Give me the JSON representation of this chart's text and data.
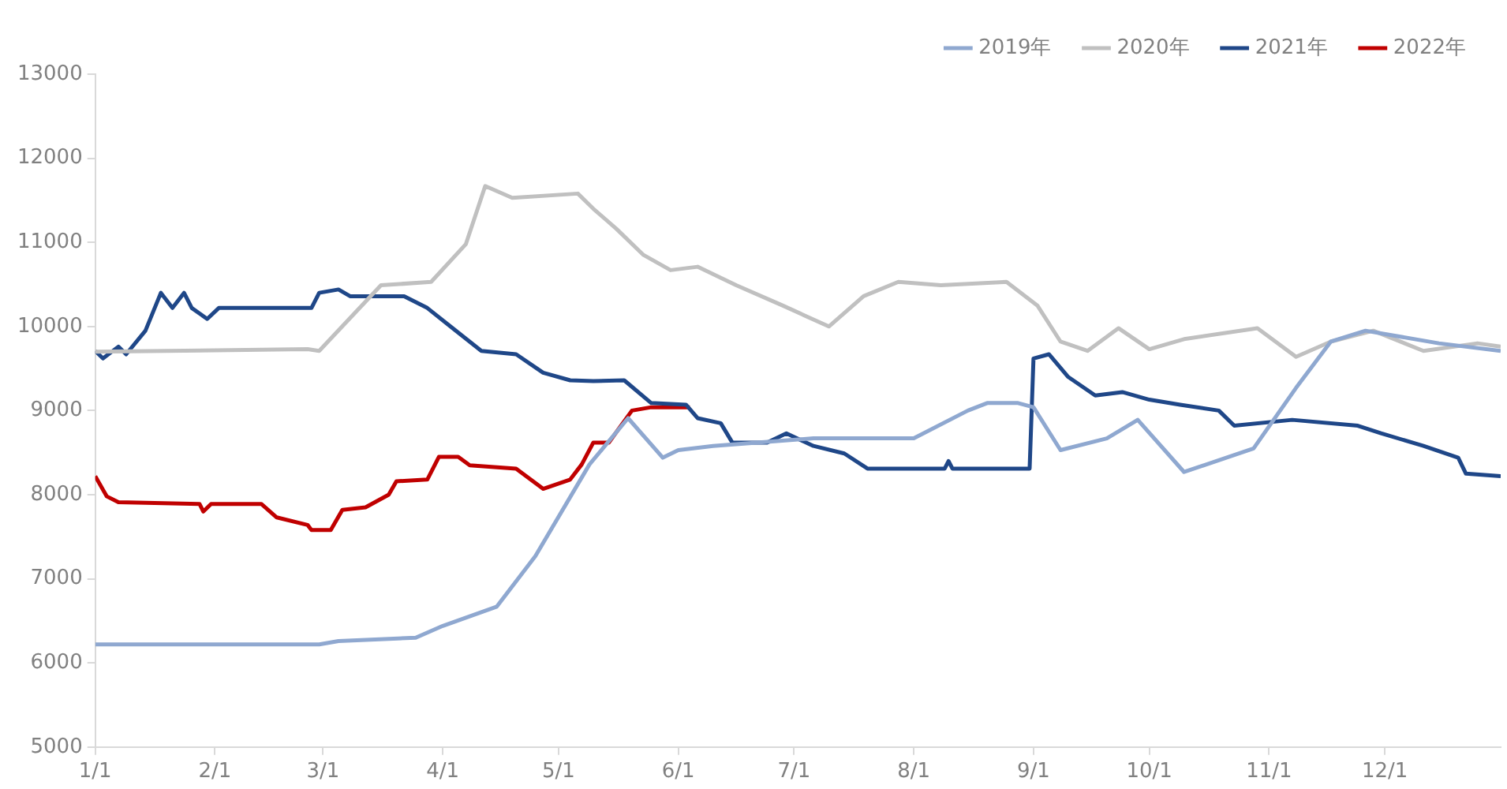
{
  "chart_data": {
    "type": "line",
    "legend": "top right",
    "grid": false,
    "marker": "none",
    "line_style": "solid",
    "ylim": [
      5000,
      13000
    ],
    "yticks": [
      5000,
      6000,
      7000,
      8000,
      9000,
      10000,
      11000,
      12000,
      13000
    ],
    "xlim": [
      "--01-01",
      "--12-31"
    ],
    "xticks": [
      {
        "value": "--01-01",
        "label": "1/1"
      },
      {
        "value": "--02-01",
        "label": "2/1"
      },
      {
        "value": "--03-01",
        "label": "3/1"
      },
      {
        "value": "--04-01",
        "label": "4/1"
      },
      {
        "value": "--05-01",
        "label": "5/1"
      },
      {
        "value": "--06-01",
        "label": "6/1"
      },
      {
        "value": "--07-01",
        "label": "7/1"
      },
      {
        "value": "--08-01",
        "label": "8/1"
      },
      {
        "value": "--09-01",
        "label": "9/1"
      },
      {
        "value": "--10-01",
        "label": "10/1"
      },
      {
        "value": "--11-01",
        "label": "11/1"
      },
      {
        "value": "--12-01",
        "label": "12/1"
      }
    ],
    "series": [
      {
        "name": "2019年",
        "color": "#8fa8d0",
        "x": [
          "--01-01",
          "--02-28",
          "--03-05",
          "--03-25",
          "--04-01",
          "--04-15",
          "--04-25",
          "--05-09",
          "--05-19",
          "--05-28",
          "--06-01",
          "--06-10",
          "--07-06",
          "--08-01",
          "--08-15",
          "--08-20",
          "--08-28",
          "--09-01",
          "--09-08",
          "--09-20",
          "--09-28",
          "--10-10",
          "--10-28",
          "--11-08",
          "--11-17",
          "--11-26",
          "--12-15",
          "--12-31"
        ],
        "values": [
          6220,
          6220,
          6260,
          6300,
          6440,
          6670,
          7270,
          8360,
          8910,
          8440,
          8530,
          8580,
          8670,
          8670,
          9000,
          9090,
          9090,
          9040,
          8530,
          8670,
          8890,
          8270,
          8550,
          9270,
          9820,
          9950,
          9800,
          9710
        ]
      },
      {
        "name": "2020年",
        "color": "#c0c0c0",
        "x": [
          "--01-01",
          "--02-25",
          "--02-28",
          "--03-16",
          "--03-29",
          "--04-07",
          "--04-12",
          "--04-19",
          "--05-06",
          "--05-10",
          "--05-16",
          "--05-23",
          "--05-30",
          "--06-06",
          "--06-16",
          "--06-28",
          "--07-10",
          "--07-19",
          "--07-28",
          "--08-08",
          "--08-25",
          "--09-02",
          "--09-08",
          "--09-15",
          "--09-23",
          "--10-01",
          "--10-10",
          "--10-29",
          "--11-08",
          "--11-17",
          "--11-28",
          "--12-11",
          "--12-25",
          "--12-31"
        ],
        "values": [
          9700,
          9730,
          9710,
          10490,
          10530,
          10980,
          11670,
          11530,
          11580,
          11400,
          11160,
          10850,
          10670,
          10710,
          10490,
          10250,
          10000,
          10360,
          10530,
          10490,
          10530,
          10250,
          9820,
          9710,
          9980,
          9730,
          9850,
          9980,
          9640,
          9820,
          9950,
          9710,
          9800,
          9760
        ]
      },
      {
        "name": "2021年",
        "color": "#1f4788",
        "x": [
          "--01-01",
          "--01-03",
          "--01-07",
          "--01-09",
          "--01-14",
          "--01-18",
          "--01-21",
          "--01-24",
          "--01-26",
          "--01-30",
          "--02-02",
          "--02-26",
          "--02-28",
          "--03-05",
          "--03-08",
          "--03-22",
          "--03-28",
          "--04-03",
          "--04-11",
          "--04-20",
          "--04-27",
          "--05-04",
          "--05-10",
          "--05-18",
          "--05-25",
          "--06-03",
          "--06-06",
          "--06-12",
          "--06-15",
          "--06-24",
          "--06-29",
          "--07-06",
          "--07-14",
          "--07-20",
          "--08-09",
          "--08-10",
          "--08-11",
          "--08-31",
          "--09-01",
          "--09-05",
          "--09-10",
          "--09-17",
          "--09-24",
          "--10-01",
          "--10-09",
          "--10-19",
          "--10-23",
          "--11-07",
          "--11-24",
          "--11-30",
          "--12-11",
          "--12-20",
          "--12-22",
          "--12-31"
        ],
        "values": [
          9710,
          9620,
          9760,
          9670,
          9950,
          10400,
          10220,
          10400,
          10220,
          10090,
          10220,
          10220,
          10400,
          10440,
          10360,
          10360,
          10220,
          10000,
          9710,
          9670,
          9450,
          9360,
          9350,
          9360,
          9090,
          9070,
          8910,
          8850,
          8620,
          8620,
          8730,
          8580,
          8490,
          8310,
          8310,
          8400,
          8310,
          8310,
          9620,
          9670,
          9400,
          9180,
          9220,
          9130,
          9070,
          9000,
          8820,
          8890,
          8820,
          8730,
          8580,
          8440,
          8250,
          8220
        ]
      },
      {
        "name": "2022年",
        "color": "#c00000",
        "x": [
          "--01-01",
          "--01-04",
          "--01-07",
          "--01-28",
          "--01-29",
          "--01-31",
          "--02-13",
          "--02-17",
          "--02-25",
          "--02-26",
          "--03-03",
          "--03-06",
          "--03-12",
          "--03-18",
          "--03-20",
          "--03-28",
          "--03-31",
          "--04-05",
          "--04-08",
          "--04-20",
          "--04-27",
          "--05-04",
          "--05-07",
          "--05-10",
          "--05-14",
          "--05-20",
          "--05-25",
          "--06-04"
        ],
        "values": [
          8220,
          7980,
          7910,
          7890,
          7800,
          7890,
          7890,
          7730,
          7640,
          7580,
          7580,
          7820,
          7850,
          8000,
          8160,
          8180,
          8450,
          8450,
          8350,
          8310,
          8070,
          8180,
          8360,
          8620,
          8620,
          9000,
          9040,
          9040
        ]
      }
    ]
  }
}
